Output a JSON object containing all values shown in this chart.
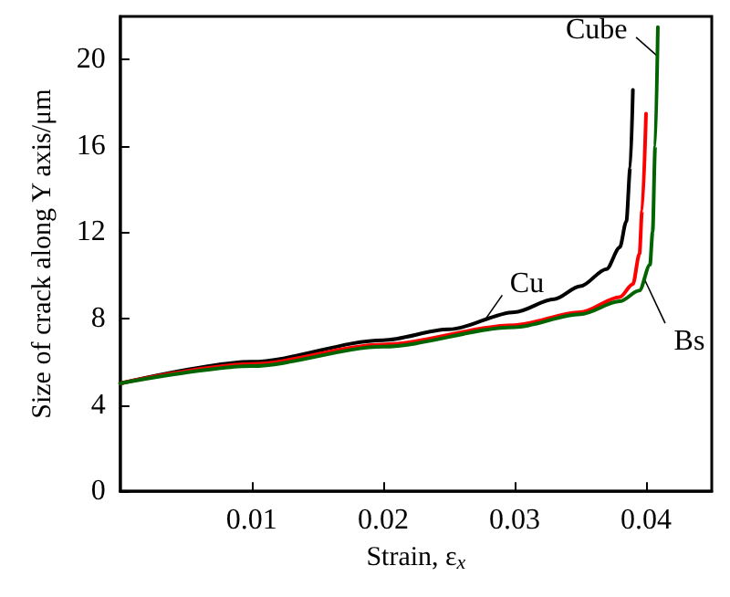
{
  "chart_data": {
    "type": "line",
    "xlabel": "Strain, ε$_{x}$",
    "ylabel": "Size of crack along Y axis/μm",
    "xlim": [
      0,
      0.045
    ],
    "xticks": [
      0.01,
      0.02,
      0.03,
      0.04
    ],
    "ylim": [
      0,
      22
    ],
    "yticks": [
      0,
      4,
      8,
      12,
      16,
      20
    ],
    "grid": false,
    "marker": "none",
    "line_style": "solid",
    "series": [
      {
        "color": "#000000",
        "x": [
          0,
          0.01,
          0.02,
          0.025,
          0.03,
          0.033,
          0.035,
          0.037,
          0.038,
          0.0385,
          0.0388,
          0.039
        ],
        "values": [
          5,
          6,
          7,
          7.5,
          8.3,
          8.9,
          9.5,
          10.3,
          11.3,
          12.5,
          15,
          18.6
        ]
      },
      {
        "color": "#ff0000",
        "x": [
          0,
          0.01,
          0.02,
          0.03,
          0.035,
          0.038,
          0.039,
          0.0395,
          0.0397,
          0.04
        ],
        "values": [
          5,
          5.9,
          6.8,
          7.7,
          8.3,
          9,
          9.6,
          11,
          13,
          17.5
        ]
      },
      {
        "color": "#006400",
        "x": [
          0,
          0.01,
          0.02,
          0.03,
          0.035,
          0.038,
          0.0395,
          0.0403,
          0.0405,
          0.0407,
          0.0409
        ],
        "values": [
          5,
          5.8,
          6.7,
          7.6,
          8.2,
          8.8,
          9.3,
          10.5,
          12,
          16,
          21.5
        ]
      }
    ],
    "annotations": [
      {
        "text": "Cu",
        "x": 0.0277,
        "y": 7.9
      },
      {
        "text": "Bs",
        "x": 0.0399,
        "y": 9.8
      },
      {
        "text": "Cube",
        "x": 0.0408,
        "y": 20.2
      }
    ]
  }
}
